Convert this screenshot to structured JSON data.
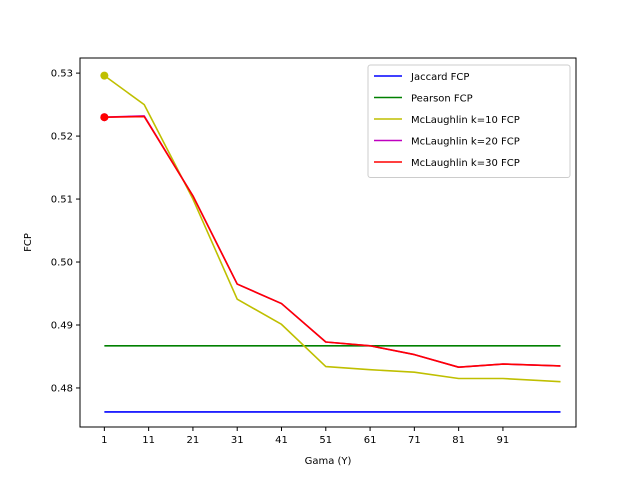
{
  "chart_data": {
    "type": "line",
    "xlabel": "Gama (Y)",
    "ylabel": "FCP",
    "xlim": [
      -4.5,
      107.5
    ],
    "ylim": [
      0.4738,
      0.5324
    ],
    "xticks": [
      1,
      11,
      21,
      31,
      41,
      51,
      61,
      71,
      81,
      91
    ],
    "yticks": [
      0.48,
      0.49,
      0.5,
      0.51,
      0.52,
      0.53
    ],
    "ytick_labels": [
      "0.48",
      "0.49",
      "0.50",
      "0.51",
      "0.52",
      "0.53"
    ],
    "legend_position": "top-right",
    "series": [
      {
        "name": "Jaccard FCP",
        "color": "#0000ff",
        "x": [
          1,
          104
        ],
        "y": [
          0.4762,
          0.4762
        ]
      },
      {
        "name": "Pearson FCP",
        "color": "#008000",
        "x": [
          1,
          104
        ],
        "y": [
          0.4867,
          0.4867
        ]
      },
      {
        "name": "McLaughlin k=10 FCP",
        "color": "#bfbf00",
        "x": [
          1,
          10,
          21,
          31,
          41,
          51,
          61,
          71,
          81,
          91,
          104
        ],
        "y": [
          0.5296,
          0.525,
          0.51,
          0.4941,
          0.4901,
          0.4834,
          0.4829,
          0.4825,
          0.4815,
          0.4815,
          0.481
        ],
        "marker_at_first": true
      },
      {
        "name": "McLaughlin k=20 FCP",
        "color": "#bf00bf",
        "x": [
          1,
          10,
          21,
          31,
          41,
          51,
          61,
          71,
          81,
          91,
          104
        ],
        "y": [
          0.523,
          0.5232,
          0.5105,
          0.4965,
          0.4934,
          0.4873,
          0.4867,
          0.4853,
          0.4833,
          0.4838,
          0.4835
        ],
        "marker_at_first": true
      },
      {
        "name": "McLaughlin k=30 FCP",
        "color": "#ff0000",
        "x": [
          1,
          10,
          21,
          31,
          41,
          51,
          61,
          71,
          81,
          91,
          104
        ],
        "y": [
          0.523,
          0.5231,
          0.5105,
          0.4965,
          0.4934,
          0.4873,
          0.4867,
          0.4853,
          0.4833,
          0.4838,
          0.4835
        ],
        "marker_at_first": true
      }
    ]
  }
}
